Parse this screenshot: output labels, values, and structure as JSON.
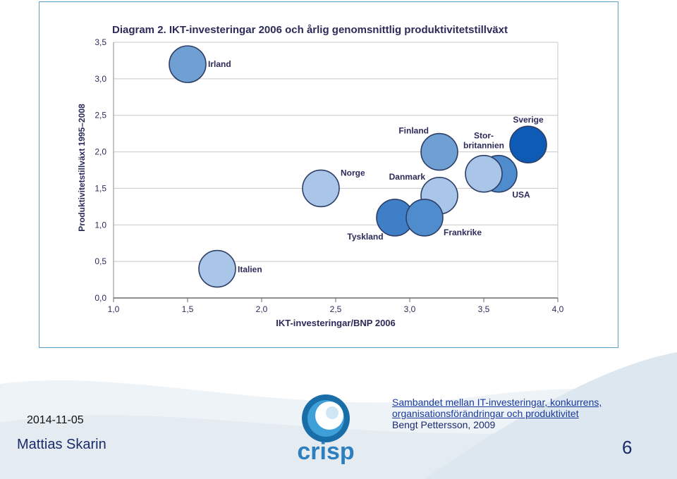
{
  "chart_data": {
    "type": "scatter",
    "title": "Diagram 2. IKT-investeringar 2006 och årlig genomsnittlig produktivitetstillväxt",
    "xlabel": "IKT-investeringar/BNP 2006",
    "ylabel": "Produktivitetstillväxt 1995–2008",
    "xlim": [
      1.0,
      4.0
    ],
    "ylim": [
      0.0,
      3.5
    ],
    "xticks": [
      "1,0",
      "1,5",
      "2,0",
      "2,5",
      "3,0",
      "3,5",
      "4,0"
    ],
    "yticks": [
      "0,0",
      "0,5",
      "1,0",
      "1,5",
      "2,0",
      "2,5",
      "3,0",
      "3,5"
    ],
    "grid": "horizontal",
    "points": [
      {
        "label": "Irland",
        "x": 1.5,
        "y": 3.2,
        "color": "#6f9fd3"
      },
      {
        "label": "Italien",
        "x": 1.7,
        "y": 0.4,
        "color": "#a9c6e8"
      },
      {
        "label": "Norge",
        "x": 2.4,
        "y": 1.5,
        "color": "#a9c6e8"
      },
      {
        "label": "Tyskland",
        "x": 2.9,
        "y": 1.1,
        "color": "#3f7fc7"
      },
      {
        "label": "Frankrike",
        "x": 3.1,
        "y": 1.1,
        "color": "#4f8ccd"
      },
      {
        "label": "Danmark",
        "x": 3.2,
        "y": 1.4,
        "color": "#a9c6e8"
      },
      {
        "label": "Finland",
        "x": 3.2,
        "y": 2.0,
        "color": "#6f9fd3"
      },
      {
        "label": "USA",
        "x": 3.6,
        "y": 1.7,
        "color": "#4f8ccd"
      },
      {
        "label": "Stor-britannien",
        "x": 3.5,
        "y": 1.7,
        "color": "#a9c6e8"
      },
      {
        "label": "Sverige",
        "x": 3.8,
        "y": 2.1,
        "color": "#0d5bb5"
      }
    ]
  },
  "footer": {
    "date": "2014-11-05",
    "author": "Mattias Skarin",
    "page_number": "6",
    "logo_text": "crisp",
    "caption_line1": "Sambandet mellan IT-investeringar, konkurrens,",
    "caption_line2": "organisationsförändringar och produktivitet",
    "caption_source": "Bengt Pettersson, 2009"
  }
}
